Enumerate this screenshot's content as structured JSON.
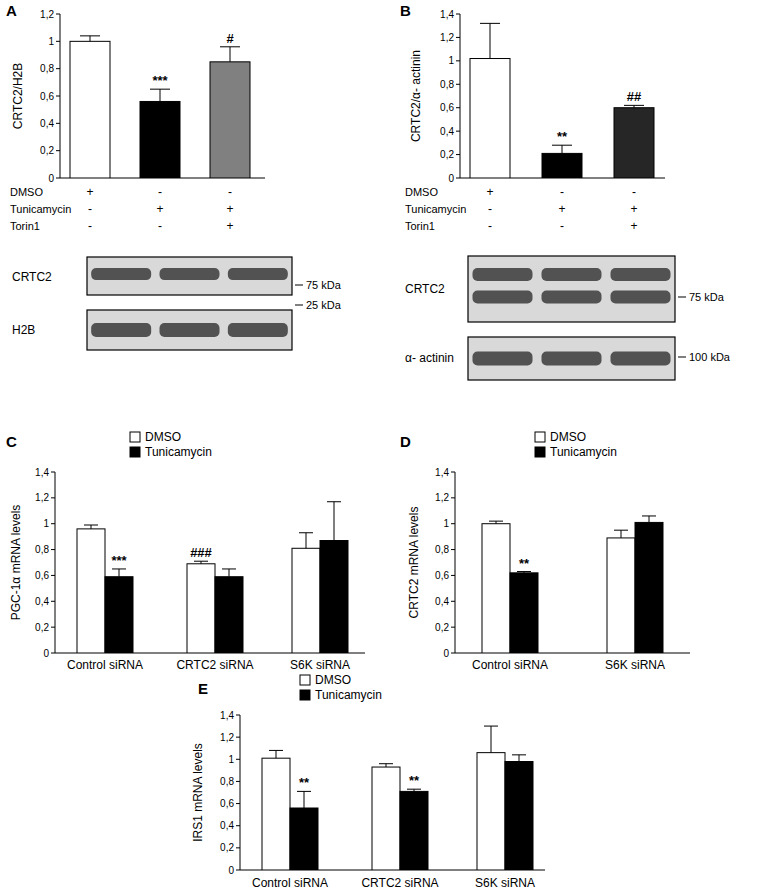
{
  "chart_data": [
    {
      "type": "bar",
      "title": "A",
      "y_label": "CRTC2/H2B",
      "categories": [
        null,
        null,
        null
      ],
      "values": [
        1.0,
        0.56,
        0.85
      ],
      "errors": [
        0.04,
        0.09,
        0.11
      ],
      "colors": [
        "#ffffff",
        "#000000",
        "#808080"
      ],
      "annotations": [
        null,
        "***",
        "#"
      ],
      "ylim": [
        0,
        1.2
      ],
      "yticks": [
        0,
        {
          "value": 0.2,
          "label": "0,2"
        },
        {
          "value": 0.4,
          "label": "0,4"
        },
        {
          "value": 0.6,
          "label": "0,6"
        },
        {
          "value": 0.8,
          "label": "0,8"
        },
        1,
        {
          "value": 1.2,
          "label": "1,2"
        }
      ],
      "treatment_rows": [
        {
          "label": "DMSO",
          "signs": [
            "+",
            "-",
            "-"
          ]
        },
        {
          "label": "Tunicamycin",
          "signs": [
            "-",
            "+",
            "+"
          ]
        },
        {
          "label": "Torin1",
          "signs": [
            "-",
            "-",
            "+"
          ]
        }
      ],
      "blots": [
        {
          "label": "CRTC2",
          "size_label": "75 kDa"
        },
        {
          "label": "H2B",
          "size_label": "25 kDa"
        }
      ]
    },
    {
      "type": "bar",
      "title": "B",
      "y_label": "CRTC2/α- actinin",
      "categories": [
        null,
        null,
        null
      ],
      "values": [
        1.02,
        0.21,
        0.6
      ],
      "errors": [
        0.3,
        0.07,
        0.02
      ],
      "colors": [
        "#ffffff",
        "#000000",
        "#262626"
      ],
      "annotations": [
        null,
        "**",
        "##"
      ],
      "ylim": [
        0,
        1.4
      ],
      "yticks": [
        0,
        {
          "value": 0.2,
          "label": "0,2"
        },
        {
          "value": 0.4,
          "label": "0,4"
        },
        {
          "value": 0.6,
          "label": "0,6"
        },
        {
          "value": 0.8,
          "label": "0,8"
        },
        1,
        {
          "value": 1.2,
          "label": "1,2"
        },
        {
          "value": 1.4,
          "label": "1,4"
        }
      ],
      "treatment_rows": [
        {
          "label": "DMSO",
          "signs": [
            "+",
            "-",
            "-"
          ]
        },
        {
          "label": "Tunicamycin",
          "signs": [
            "-",
            "+",
            "+"
          ]
        },
        {
          "label": "Torin1",
          "signs": [
            "-",
            "-",
            "+"
          ]
        }
      ],
      "blots": [
        {
          "label": "CRTC2",
          "size_label": "75 kDa"
        },
        {
          "label": "α- actinin",
          "size_label": "100 kDa"
        }
      ]
    },
    {
      "type": "bar",
      "title": "C",
      "y_label": "PGC-1α mRNA levels",
      "categories": [
        "Control siRNA",
        "CRTC2 siRNA",
        "S6K siRNA"
      ],
      "series": [
        {
          "name": "DMSO",
          "color": "#ffffff",
          "values": [
            0.96,
            0.69,
            0.81
          ],
          "errors": [
            0.03,
            0.02,
            0.12
          ],
          "annotations": [
            null,
            "###",
            null
          ]
        },
        {
          "name": "Tunicamycin",
          "color": "#000000",
          "values": [
            0.59,
            0.59,
            0.87
          ],
          "errors": [
            0.06,
            0.06,
            0.3
          ],
          "annotations": [
            "***",
            null,
            null
          ]
        }
      ],
      "ylim": [
        0,
        1.4
      ],
      "yticks": [
        0,
        {
          "value": 0.2,
          "label": "0,2"
        },
        {
          "value": 0.4,
          "label": "0,4"
        },
        {
          "value": 0.6,
          "label": "0,6"
        },
        {
          "value": 0.8,
          "label": "0,8"
        },
        1,
        {
          "value": 1.2,
          "label": "1,2"
        },
        {
          "value": 1.4,
          "label": "1,4"
        }
      ],
      "legend": "top"
    },
    {
      "type": "bar",
      "title": "D",
      "y_label": "CRTC2 mRNA levels",
      "categories": [
        "Control siRNA",
        "S6K siRNA"
      ],
      "series": [
        {
          "name": "DMSO",
          "color": "#ffffff",
          "values": [
            1.0,
            0.89
          ],
          "errors": [
            0.02,
            0.06
          ],
          "annotations": [
            null,
            null
          ]
        },
        {
          "name": "Tunicamycin",
          "color": "#000000",
          "values": [
            0.62,
            1.01
          ],
          "errors": [
            0.01,
            0.05
          ],
          "annotations": [
            "**",
            null
          ]
        }
      ],
      "ylim": [
        0,
        1.4
      ],
      "yticks": [
        0,
        {
          "value": 0.2,
          "label": "0,2"
        },
        {
          "value": 0.4,
          "label": "0,4"
        },
        {
          "value": 0.6,
          "label": "0,6"
        },
        {
          "value": 0.8,
          "label": "0,8"
        },
        1,
        {
          "value": 1.2,
          "label": "1,2"
        },
        {
          "value": 1.4,
          "label": "1,4"
        }
      ],
      "legend": "top"
    },
    {
      "type": "bar",
      "title": "E",
      "y_label": "IRS1  mRNA levels",
      "categories": [
        "Control siRNA",
        "CRTC2 siRNA",
        "S6K siRNA"
      ],
      "series": [
        {
          "name": "DMSO",
          "color": "#ffffff",
          "values": [
            1.01,
            0.93,
            1.06
          ],
          "errors": [
            0.07,
            0.03,
            0.24
          ],
          "annotations": [
            null,
            null,
            null
          ]
        },
        {
          "name": "Tunicamycin",
          "color": "#000000",
          "values": [
            0.56,
            0.71,
            0.98
          ],
          "errors": [
            0.15,
            0.02,
            0.06
          ],
          "annotations": [
            "**",
            "**",
            null
          ]
        }
      ],
      "ylim": [
        0,
        1.4
      ],
      "yticks": [
        0,
        {
          "value": 0.2,
          "label": "0,2"
        },
        {
          "value": 0.4,
          "label": "0,4"
        },
        {
          "value": 0.6,
          "label": "0,6"
        },
        {
          "value": 0.8,
          "label": "0,8"
        },
        1,
        {
          "value": 1.2,
          "label": "1,2"
        },
        {
          "value": 1.4,
          "label": "1,4"
        }
      ],
      "legend": "top"
    }
  ]
}
